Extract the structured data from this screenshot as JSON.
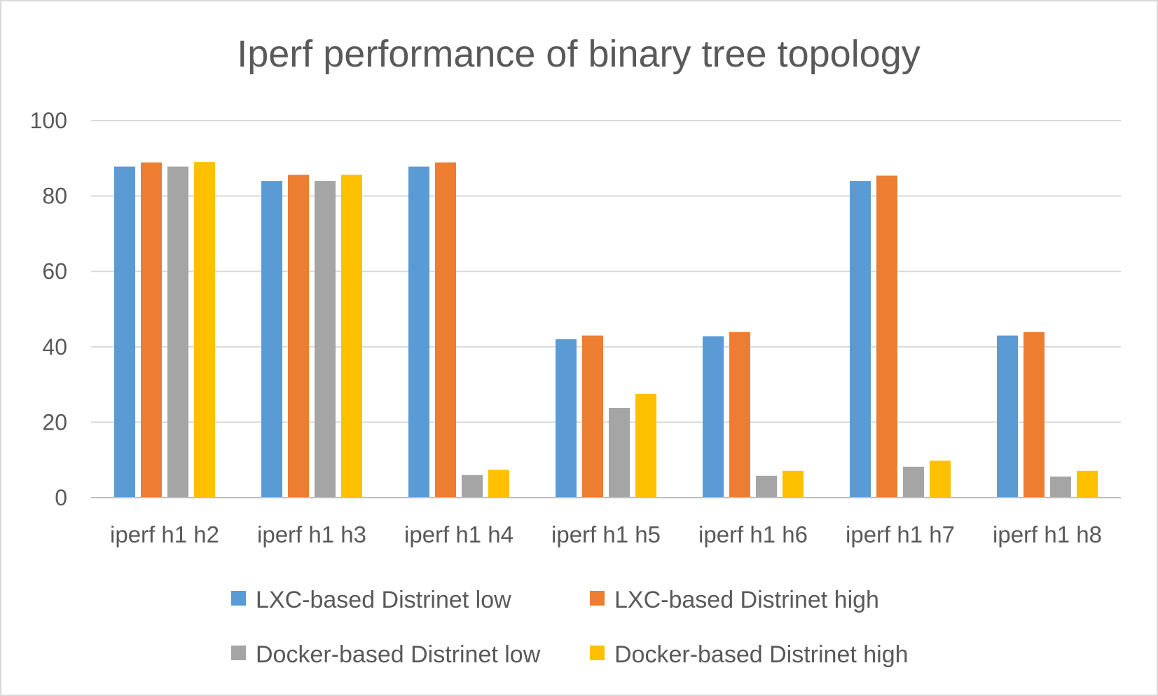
{
  "chart_data": {
    "type": "bar",
    "title": "Iperf performance of binary tree topology",
    "xlabel": "",
    "ylabel": "",
    "ylim": [
      0,
      100
    ],
    "yticks": [
      0,
      20,
      40,
      60,
      80,
      100
    ],
    "grid": true,
    "legend_position": "bottom",
    "categories": [
      "iperf h1 h2",
      "iperf h1 h3",
      "iperf h1 h4",
      "iperf h1 h5",
      "iperf h1 h6",
      "iperf h1 h7",
      "iperf h1 h8"
    ],
    "series": [
      {
        "name": "LXC-based Distrinet low",
        "color": "#5b9bd5",
        "values": [
          87.8,
          84.0,
          87.8,
          42.0,
          42.8,
          84.0,
          43.0
        ]
      },
      {
        "name": "LXC-based Distrinet high",
        "color": "#ed7d31",
        "values": [
          88.9,
          85.6,
          88.9,
          43.0,
          43.9,
          85.4,
          43.9
        ]
      },
      {
        "name": "Docker-based Distrinet low",
        "color": "#a5a5a5",
        "values": [
          87.8,
          84.0,
          6.0,
          23.8,
          5.8,
          8.2,
          5.6
        ]
      },
      {
        "name": "Docker-based Distrinet high",
        "color": "#ffc000",
        "values": [
          89.0,
          85.6,
          7.4,
          27.5,
          7.1,
          9.8,
          7.1
        ]
      }
    ],
    "colors": {
      "grid": "#d9d9d9",
      "axis": "#bfbfbf",
      "text": "#595959"
    }
  }
}
